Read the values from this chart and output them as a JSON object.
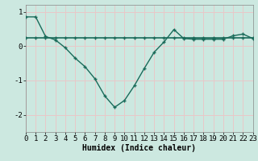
{
  "xlabel": "Humidex (Indice chaleur)",
  "background_color": "#cce8e0",
  "line_color": "#1a6b5a",
  "grid_color": "#e8c8c8",
  "x_values": [
    0,
    1,
    2,
    3,
    4,
    5,
    6,
    7,
    8,
    9,
    10,
    11,
    12,
    13,
    14,
    15,
    16,
    17,
    18,
    19,
    20,
    21,
    22,
    23
  ],
  "y_curve": [
    0.85,
    0.85,
    0.28,
    0.18,
    -0.05,
    -0.35,
    -0.6,
    -0.95,
    -1.45,
    -1.78,
    -1.58,
    -1.15,
    -0.65,
    -0.18,
    0.12,
    0.48,
    0.22,
    0.2,
    0.2,
    0.2,
    0.2,
    0.3,
    0.35,
    0.22
  ],
  "y_flat": [
    0.25,
    0.25,
    0.25,
    0.25,
    0.25,
    0.25,
    0.25,
    0.25,
    0.25,
    0.25,
    0.25,
    0.25,
    0.25,
    0.25,
    0.25,
    0.25,
    0.25,
    0.25,
    0.25,
    0.25,
    0.25,
    0.25,
    0.25,
    0.25
  ],
  "xlim": [
    0,
    23
  ],
  "ylim": [
    -2.5,
    1.2
  ],
  "yticks": [
    -2,
    -1,
    0,
    1
  ],
  "xticks": [
    0,
    1,
    2,
    3,
    4,
    5,
    6,
    7,
    8,
    9,
    10,
    11,
    12,
    13,
    14,
    15,
    16,
    17,
    18,
    19,
    20,
    21,
    22,
    23
  ],
  "xlabel_fontsize": 7,
  "tick_fontsize": 6.5
}
